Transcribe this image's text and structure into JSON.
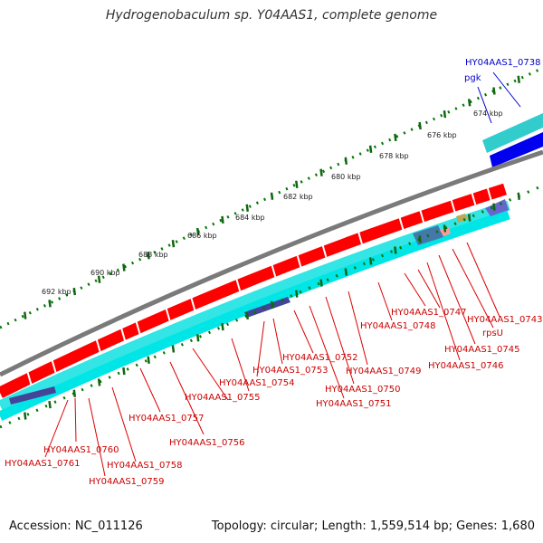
{
  "title": "Hydrogenobaculum sp. Y04AAS1, complete genome",
  "footer": {
    "accession": "Accession: NC_011126",
    "summary": "Topology: circular; Length: 1,559,514 bp; Genes: 1,680"
  },
  "colors": {
    "forward_gene": "#ff0000",
    "cds_track": "#33e5e5",
    "backbone": "#808080",
    "blue_gene": "#0000ff",
    "ruler": "#007700",
    "tick_major": "#226622",
    "forward_label": "#0000cc",
    "reverse_label": "#cc0000",
    "dark_gene": "#444499"
  },
  "ruler_labels": [
    "674 kbp",
    "676 kbp",
    "678 kbp",
    "680 kbp",
    "682 kbp",
    "684 kbp",
    "686 kbp",
    "688 kbp",
    "690 kbp",
    "692 kbp"
  ],
  "forward_labels": [
    "HY04AAS1_0738",
    "pgk"
  ],
  "reverse_labels": [
    "HY04AAS1_0743",
    "rpsU",
    "HY04AAS1_0745",
    "HY04AAS1_0746",
    "HY04AAS1_0747",
    "HY04AAS1_0748",
    "HY04AAS1_0749",
    "HY04AAS1_0750",
    "HY04AAS1_0751",
    "HY04AAS1_0752",
    "HY04AAS1_0753",
    "HY04AAS1_0754",
    "HY04AAS1_0755",
    "HY04AAS1_0756",
    "HY04AAS1_0757",
    "HY04AAS1_0758",
    "HY04AAS1_0759",
    "HY04AAS1_0760",
    "HY04AAS1_0761"
  ]
}
